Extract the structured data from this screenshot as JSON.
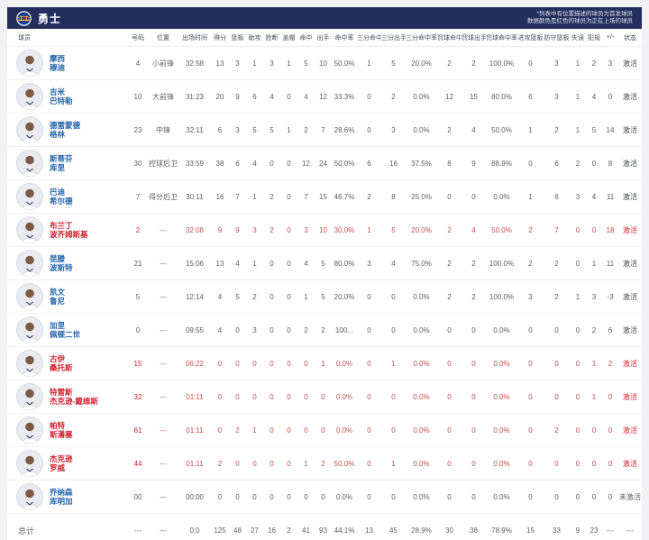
{
  "header": {
    "team_name": "勇士",
    "note_line1": "*列表中有位置描述的球员为首发球员",
    "note_line2": "数据颜色是红色的球员为正在上场的球员"
  },
  "table": {
    "columns": [
      "球员",
      "号码",
      "位置",
      "出场时间",
      "得分",
      "篮板",
      "助攻",
      "抢断",
      "盖帽",
      "命中",
      "出手",
      "命中率",
      "三分命中",
      "三分出手",
      "三分命中率",
      "罚球命中",
      "罚球出手",
      "罚球命中率",
      "进攻篮板",
      "防守篮板",
      "失误",
      "犯规",
      "+/-",
      "状态"
    ],
    "rows": [
      {
        "first_name": "摩西",
        "last_name": "穆迪",
        "highlight": false,
        "stats": [
          "4",
          "小前锋",
          "32:58",
          "13",
          "3",
          "1",
          "3",
          "1",
          "5",
          "10",
          "50.0%",
          "1",
          "5",
          "20.0%",
          "2",
          "2",
          "100.0%",
          "0",
          "3",
          "1",
          "2",
          "3",
          "激活"
        ]
      },
      {
        "first_name": "吉米",
        "last_name": "巴特勒",
        "highlight": false,
        "stats": [
          "10",
          "大前锋",
          "31:23",
          "20",
          "9",
          "6",
          "4",
          "0",
          "4",
          "12",
          "33.3%",
          "0",
          "2",
          "0.0%",
          "12",
          "15",
          "80.0%",
          "6",
          "3",
          "1",
          "4",
          "0",
          "激活"
        ]
      },
      {
        "first_name": "德雷蒙德",
        "last_name": "格林",
        "highlight": false,
        "stats": [
          "23",
          "中锋",
          "32:11",
          "6",
          "3",
          "5",
          "5",
          "1",
          "2",
          "7",
          "28.6%",
          "0",
          "3",
          "0.0%",
          "2",
          "4",
          "50.0%",
          "1",
          "2",
          "1",
          "5",
          "14",
          "激活"
        ]
      },
      {
        "first_name": "斯蒂芬",
        "last_name": "库里",
        "highlight": false,
        "stats": [
          "30",
          "控球后卫",
          "33:59",
          "38",
          "6",
          "4",
          "0",
          "0",
          "12",
          "24",
          "50.0%",
          "6",
          "16",
          "37.5%",
          "8",
          "9",
          "88.9%",
          "0",
          "6",
          "2",
          "0",
          "8",
          "激活"
        ]
      },
      {
        "first_name": "巴迪",
        "last_name": "希尔德",
        "highlight": false,
        "stats": [
          "7",
          "得分后卫",
          "30:11",
          "16",
          "7",
          "1",
          "2",
          "0",
          "7",
          "15",
          "46.7%",
          "2",
          "8",
          "25.0%",
          "0",
          "0",
          "0.0%",
          "1",
          "6",
          "3",
          "4",
          "11",
          "激活"
        ]
      },
      {
        "first_name": "布兰丁",
        "last_name": "波齐姆斯基",
        "highlight": true,
        "stats": [
          "2",
          "---",
          "32:08",
          "9",
          "9",
          "3",
          "2",
          "0",
          "3",
          "10",
          "30.0%",
          "1",
          "5",
          "20.0%",
          "2",
          "4",
          "50.0%",
          "2",
          "7",
          "0",
          "0",
          "18",
          "激活"
        ]
      },
      {
        "first_name": "昆滕",
        "last_name": "波斯特",
        "highlight": false,
        "stats": [
          "21",
          "---",
          "15:06",
          "13",
          "4",
          "1",
          "0",
          "0",
          "4",
          "5",
          "80.0%",
          "3",
          "4",
          "75.0%",
          "2",
          "2",
          "100.0%",
          "2",
          "2",
          "0",
          "1",
          "11",
          "激活"
        ]
      },
      {
        "first_name": "凯文",
        "last_name": "鲁尼",
        "highlight": false,
        "stats": [
          "5",
          "---",
          "12:14",
          "4",
          "5",
          "2",
          "0",
          "0",
          "1",
          "5",
          "20.0%",
          "0",
          "0",
          "0.0%",
          "2",
          "2",
          "100.0%",
          "3",
          "2",
          "1",
          "3",
          "-3",
          "激活"
        ]
      },
      {
        "first_name": "加里",
        "last_name": "佩顿二世",
        "highlight": false,
        "stats": [
          "0",
          "---",
          "09:55",
          "4",
          "0",
          "3",
          "0",
          "0",
          "2",
          "2",
          "100...",
          "0",
          "0",
          "0.0%",
          "0",
          "0",
          "0.0%",
          "0",
          "0",
          "0",
          "2",
          "6",
          "激活"
        ]
      },
      {
        "first_name": "古伊",
        "last_name": "桑托斯",
        "highlight": true,
        "stats": [
          "15",
          "---",
          "06:22",
          "0",
          "0",
          "0",
          "0",
          "0",
          "0",
          "1",
          "0.0%",
          "0",
          "1",
          "0.0%",
          "0",
          "0",
          "0.0%",
          "0",
          "0",
          "0",
          "1",
          "2",
          "激活"
        ]
      },
      {
        "first_name": "特雷斯",
        "last_name": "杰克逊-戴维斯",
        "highlight": true,
        "stats": [
          "32",
          "---",
          "01:11",
          "0",
          "0",
          "0",
          "0",
          "0",
          "0",
          "0",
          "0.0%",
          "0",
          "0",
          "0.0%",
          "0",
          "0",
          "0.0%",
          "0",
          "0",
          "0",
          "1",
          "0",
          "激活"
        ]
      },
      {
        "first_name": "帕特",
        "last_name": "斯潘塞",
        "highlight": true,
        "stats": [
          "61",
          "---",
          "01:11",
          "0",
          "2",
          "1",
          "0",
          "0",
          "0",
          "0",
          "0.0%",
          "0",
          "0",
          "0.0%",
          "0",
          "0",
          "0.0%",
          "0",
          "2",
          "0",
          "0",
          "0",
          "激活"
        ]
      },
      {
        "first_name": "杰克逊",
        "last_name": "罗威",
        "highlight": true,
        "stats": [
          "44",
          "---",
          "01:11",
          "2",
          "0",
          "0",
          "0",
          "0",
          "1",
          "2",
          "50.0%",
          "0",
          "1",
          "0.0%",
          "0",
          "0",
          "0.0%",
          "0",
          "0",
          "0",
          "0",
          "0",
          "激活"
        ]
      },
      {
        "first_name": "乔纳森",
        "last_name": "库明加",
        "highlight": false,
        "inactive": true,
        "stats": [
          "00",
          "---",
          "00:00",
          "0",
          "0",
          "0",
          "0",
          "0",
          "0",
          "0",
          "0.0%",
          "0",
          "0",
          "0.0%",
          "0",
          "0",
          "0.0%",
          "0",
          "0",
          "0",
          "0",
          "0",
          "未激活"
        ]
      }
    ],
    "totals": {
      "label": "总计",
      "stats": [
        "---",
        "---",
        "0:0",
        "125",
        "48",
        "27",
        "16",
        "2",
        "41",
        "93",
        "44.1%",
        "13",
        "45",
        "28.9%",
        "30",
        "38",
        "78.9%",
        "15",
        "33",
        "9",
        "23",
        "---",
        "---"
      ]
    }
  },
  "colors": {
    "header_bar": "#232e5c",
    "name_link_blue": "#2365ae",
    "on_court_red": "#d41f2c",
    "on_court_red_soft": "#c3524f",
    "stat_gray": "#5c5e63",
    "logo_gold": "#fdb927",
    "logo_blue": "#1a3e8f"
  }
}
